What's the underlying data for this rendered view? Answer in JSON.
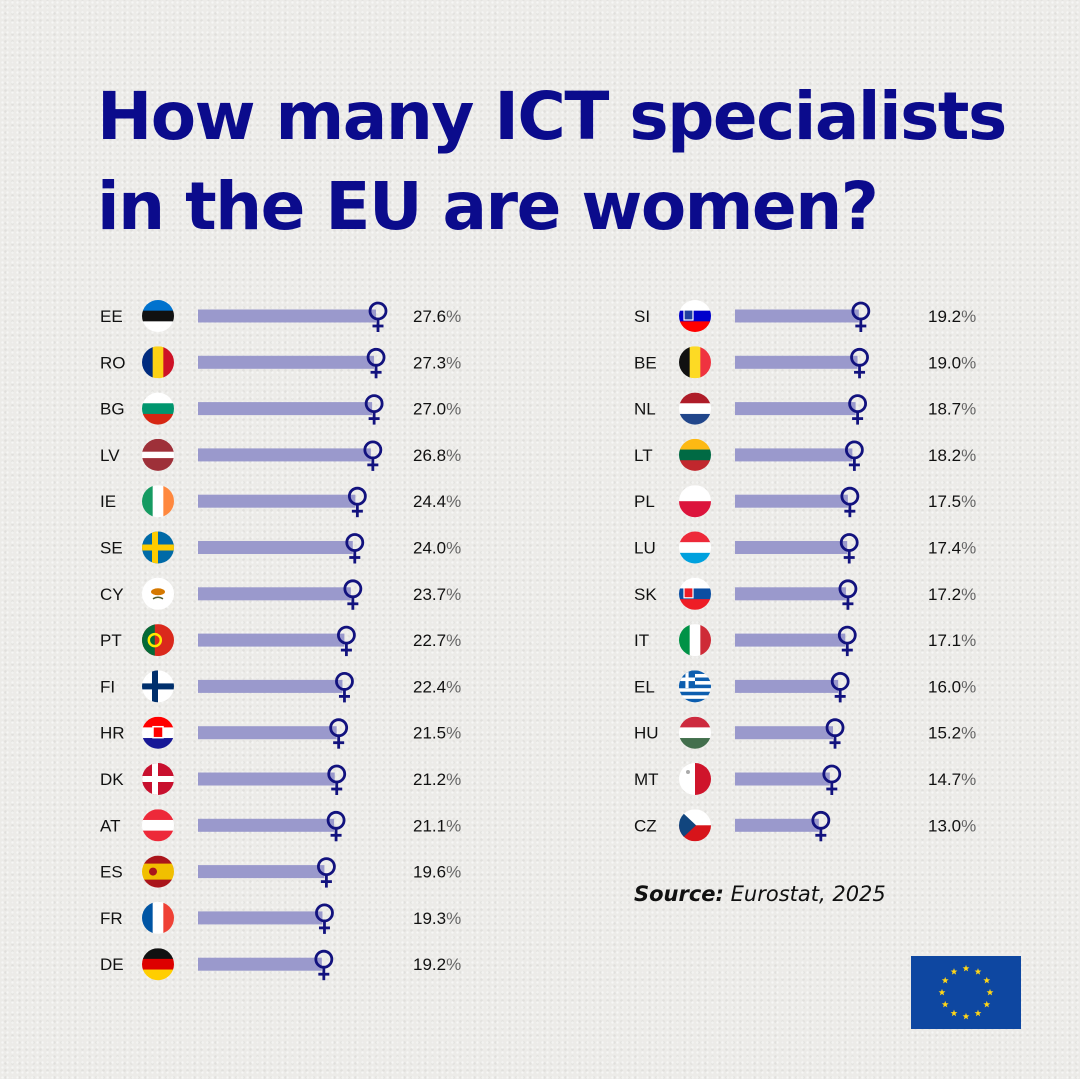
{
  "title": {
    "line1": "How many ICT specialists",
    "line2": "in the EU are women?"
  },
  "source": {
    "label": "Source:",
    "text": "Eurostat, 2025"
  },
  "colors": {
    "title": "#0b0b8c",
    "bar": "#9a99cc",
    "symbol": "#12127e",
    "eu_blue": "#0e47a1",
    "eu_star": "#ffd617"
  },
  "icons": {
    "marker": "female-symbol-icon",
    "logo": "eu-flag-logo"
  },
  "chart_data": {
    "type": "bar",
    "orientation": "horizontal",
    "unit": "%",
    "columns": [
      [
        {
          "code": "EE",
          "value": 27.6
        },
        {
          "code": "RO",
          "value": 27.3
        },
        {
          "code": "BG",
          "value": 27.0
        },
        {
          "code": "LV",
          "value": 26.8
        },
        {
          "code": "IE",
          "value": 24.4
        },
        {
          "code": "SE",
          "value": 24.0
        },
        {
          "code": "CY",
          "value": 23.7
        },
        {
          "code": "PT",
          "value": 22.7
        },
        {
          "code": "FI",
          "value": 22.4
        },
        {
          "code": "HR",
          "value": 21.5
        },
        {
          "code": "DK",
          "value": 21.2
        },
        {
          "code": "AT",
          "value": 21.1
        },
        {
          "code": "ES",
          "value": 19.6
        },
        {
          "code": "FR",
          "value": 19.3
        },
        {
          "code": "DE",
          "value": 19.2
        }
      ],
      [
        {
          "code": "SI",
          "value": 19.2
        },
        {
          "code": "BE",
          "value": 19.0
        },
        {
          "code": "NL",
          "value": 18.7
        },
        {
          "code": "LT",
          "value": 18.2
        },
        {
          "code": "PL",
          "value": 17.5
        },
        {
          "code": "LU",
          "value": 17.4
        },
        {
          "code": "SK",
          "value": 17.2
        },
        {
          "code": "IT",
          "value": 17.1
        },
        {
          "code": "EL",
          "value": 16.0
        },
        {
          "code": "HU",
          "value": 15.2
        },
        {
          "code": "MT",
          "value": 14.7
        },
        {
          "code": "CZ",
          "value": 13.0
        }
      ]
    ],
    "labels": [
      [
        "27.6",
        "27.3",
        "27.0",
        "26.8",
        "24.4",
        "24.0",
        "23.7",
        "22.7",
        "22.4",
        "21.5",
        "21.2",
        "21.1",
        "19.6",
        "19.3",
        "19.2"
      ],
      [
        "19.2",
        "19.0",
        "18.7",
        "18.2",
        "17.5",
        "17.4",
        "17.2",
        "17.1",
        "16.0",
        "15.2",
        "14.7",
        "13.0"
      ]
    ],
    "grid": false,
    "legend": "none"
  }
}
